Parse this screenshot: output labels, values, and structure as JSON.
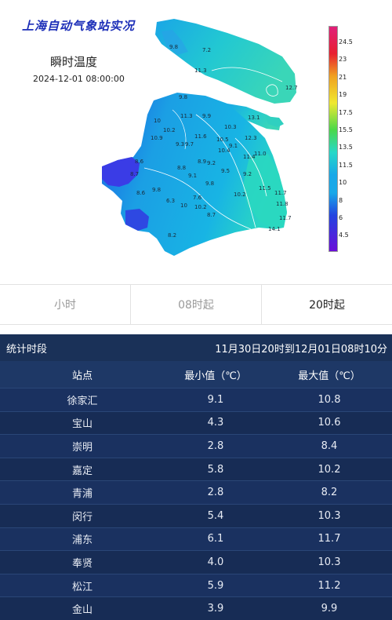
{
  "map": {
    "title": "上海自动气象站实况",
    "subtitle": "瞬时温度",
    "datetime": "2024-12-01 08:00:00",
    "stations": [
      {
        "label": "9.8"
      },
      {
        "label": "7.2"
      },
      {
        "label": "11.3"
      },
      {
        "label": "12.7"
      },
      {
        "label": "13.1"
      },
      {
        "label": "9.8"
      },
      {
        "label": "11.3"
      },
      {
        "label": "9.9"
      },
      {
        "label": "10"
      },
      {
        "label": "10.9"
      },
      {
        "label": "10.2"
      },
      {
        "label": "9.3"
      },
      {
        "label": "9.7"
      },
      {
        "label": "11.6"
      },
      {
        "label": "10.5"
      },
      {
        "label": "10.4"
      },
      {
        "label": "9.1"
      },
      {
        "label": "12.3"
      },
      {
        "label": "11.4"
      },
      {
        "label": "11.0"
      },
      {
        "label": "9.2"
      },
      {
        "label": "8.7"
      },
      {
        "label": "8.6"
      },
      {
        "label": "8.9"
      },
      {
        "label": "9.1"
      },
      {
        "label": "8.8"
      },
      {
        "label": "9.5"
      },
      {
        "label": "9.2"
      },
      {
        "label": "8.6"
      },
      {
        "label": "9.8"
      },
      {
        "label": "6.3"
      },
      {
        "label": "10"
      },
      {
        "label": "7.6"
      },
      {
        "label": "10.2"
      },
      {
        "label": "11.5"
      },
      {
        "label": "11.7"
      },
      {
        "label": "11.8"
      },
      {
        "label": "10.2"
      },
      {
        "label": "8.7"
      },
      {
        "label": "11.7"
      },
      {
        "label": "14.1"
      },
      {
        "label": "8.2"
      },
      {
        "label": "9.8"
      },
      {
        "label": "10.3"
      }
    ],
    "legend": {
      "labels": [
        "24.5",
        "23",
        "21",
        "19",
        "17.5",
        "15.5",
        "13.5",
        "11.5",
        "10",
        "8",
        "6",
        "4.5"
      ],
      "colors": {
        "low": "#6a0dd8",
        "blue": "#2244e0",
        "cyan": "#19a8e8",
        "aqua": "#26d8c8",
        "green": "#4ad84a",
        "yellow": "#f0e830",
        "orange": "#f0a020",
        "red": "#e82030",
        "magenta": "#e0207a"
      }
    }
  },
  "tabs": [
    {
      "label": "小时"
    },
    {
      "label": "08时起"
    },
    {
      "label": "20时起"
    }
  ],
  "stats": {
    "period_label": "统计时段",
    "period_value": "11月30日20时到12月01日08时10分",
    "columns": {
      "station": "站点",
      "min": "最小值（℃）",
      "max": "最大值（℃）"
    },
    "rows": [
      {
        "station": "徐家汇",
        "min": "9.1",
        "max": "10.8"
      },
      {
        "station": "宝山",
        "min": "4.3",
        "max": "10.6"
      },
      {
        "station": "崇明",
        "min": "2.8",
        "max": "8.4"
      },
      {
        "station": "嘉定",
        "min": "5.8",
        "max": "10.2"
      },
      {
        "station": "青浦",
        "min": "2.8",
        "max": "8.2"
      },
      {
        "station": "闵行",
        "min": "5.4",
        "max": "10.3"
      },
      {
        "station": "浦东",
        "min": "6.1",
        "max": "11.7"
      },
      {
        "station": "奉贤",
        "min": "4.0",
        "max": "10.3"
      },
      {
        "station": "松江",
        "min": "5.9",
        "max": "11.2"
      },
      {
        "station": "金山",
        "min": "3.9",
        "max": "9.9"
      }
    ]
  }
}
